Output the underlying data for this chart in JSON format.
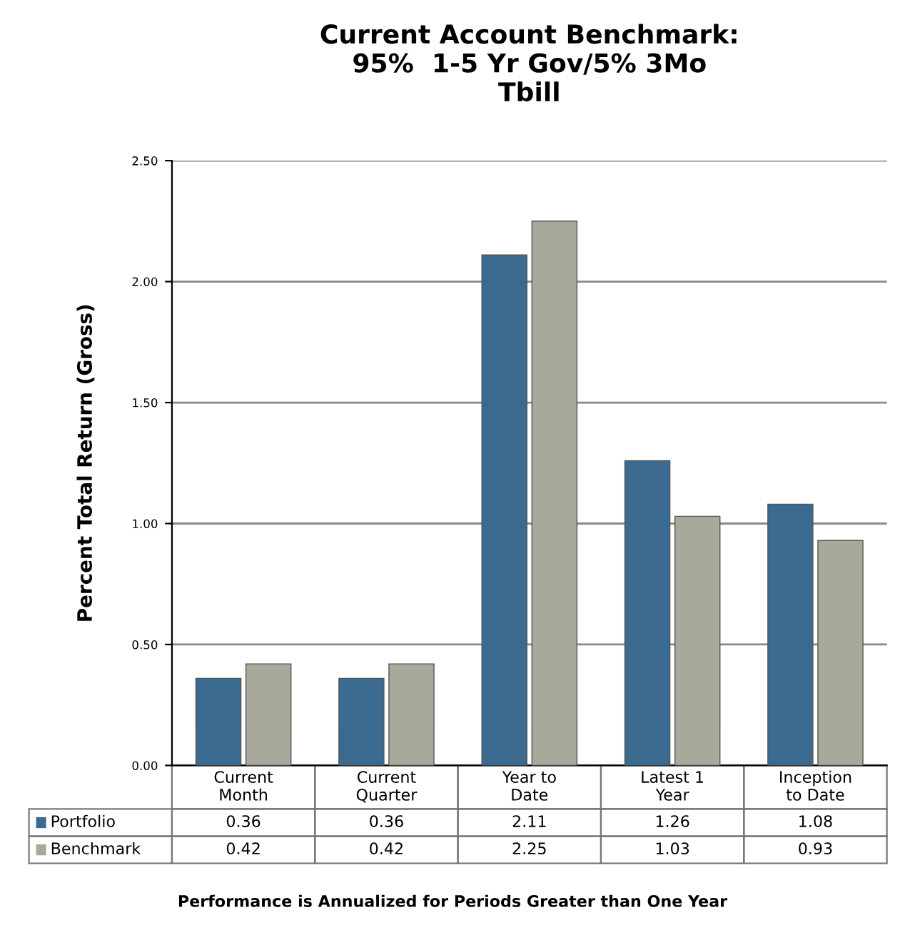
{
  "chart_data": {
    "type": "bar",
    "title": "Current Account Benchmark:\n95%  1-5 Yr Gov/5% 3Mo\nTbill",
    "ylabel": "Percent Total Return (Gross)",
    "categories": [
      "Current\nMonth",
      "Current\nQuarter",
      "Year to\nDate",
      "Latest 1\nYear",
      "Inception\nto Date"
    ],
    "series": [
      {
        "name": "Portfolio",
        "color": "#3a6a8f",
        "values": [
          0.36,
          0.36,
          2.11,
          1.26,
          1.08
        ]
      },
      {
        "name": "Benchmark",
        "color": "#a9a99b",
        "values": [
          0.42,
          0.42,
          2.25,
          1.03,
          0.93
        ]
      }
    ],
    "ylim": [
      0,
      2.5
    ],
    "yticks": [
      {
        "value": 0,
        "label": "0.00"
      },
      {
        "value": 0.5,
        "label": "0.50"
      },
      {
        "value": 1,
        "label": "1.00"
      },
      {
        "value": 1.5,
        "label": "1.50"
      },
      {
        "value": 2,
        "label": "2.00"
      },
      {
        "value": 2.5,
        "label": "2.50"
      }
    ],
    "grid": "y",
    "legend": "bottom",
    "data_labels": true,
    "annotations": [
      "Performance is Annualized for Periods Greater than One Year"
    ]
  }
}
